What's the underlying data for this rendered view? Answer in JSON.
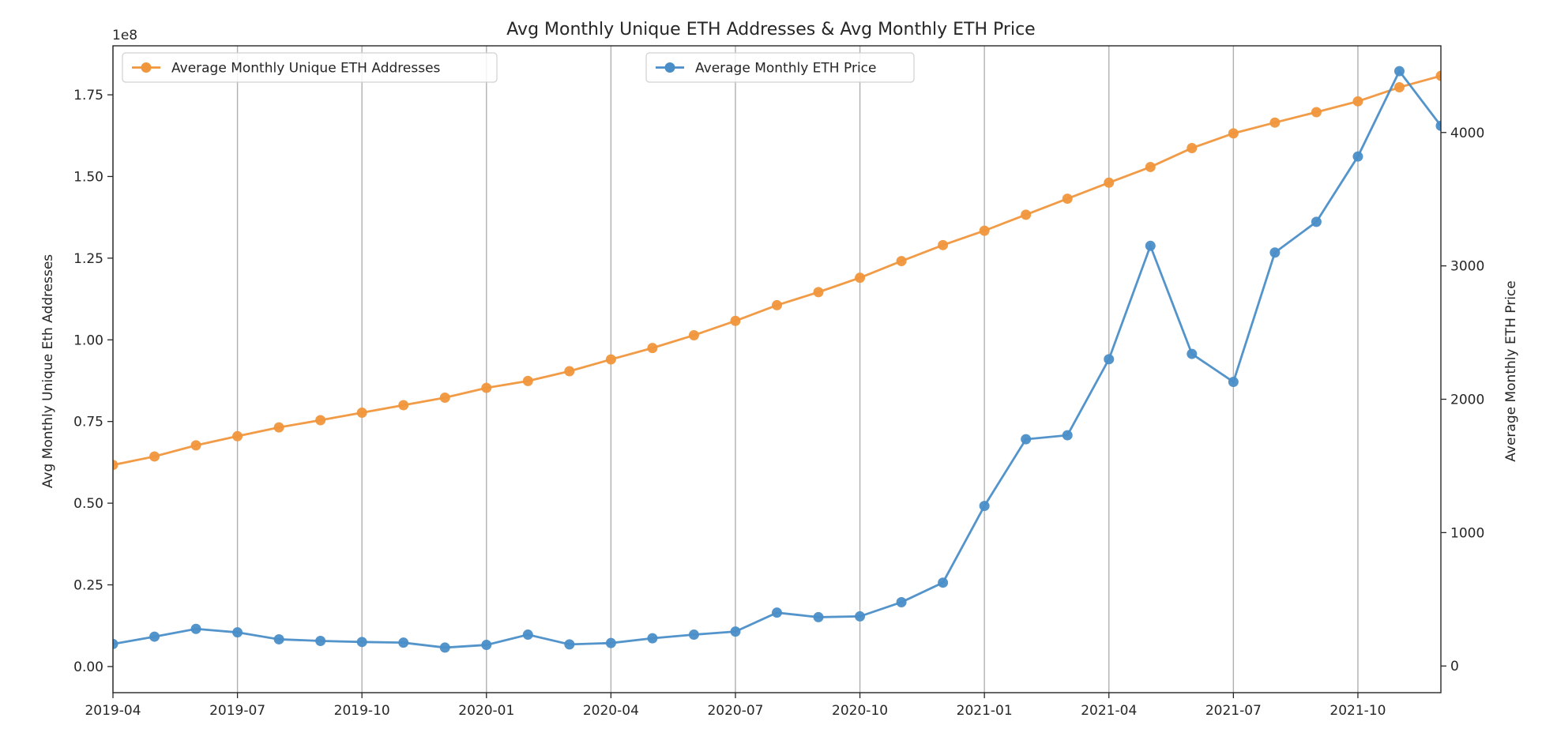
{
  "chart_data": {
    "type": "line",
    "title": "Avg Monthly Unique ETH Addresses & Avg Monthly ETH Price",
    "xlabel": "",
    "x": [
      "2019-04",
      "2019-05",
      "2019-06",
      "2019-07",
      "2019-08",
      "2019-09",
      "2019-10",
      "2019-11",
      "2019-12",
      "2020-01",
      "2020-02",
      "2020-03",
      "2020-04",
      "2020-05",
      "2020-06",
      "2020-07",
      "2020-08",
      "2020-09",
      "2020-10",
      "2020-11",
      "2020-12",
      "2021-01",
      "2021-02",
      "2021-03",
      "2021-04",
      "2021-05",
      "2021-06",
      "2021-07",
      "2021-08",
      "2021-09",
      "2021-10",
      "2021-11",
      "2021-12"
    ],
    "xlim": [
      "2019-04",
      "2021-12"
    ],
    "x_ticks": [
      "2019-04",
      "2019-07",
      "2019-10",
      "2020-01",
      "2020-04",
      "2020-07",
      "2020-10",
      "2021-01",
      "2021-04",
      "2021-07",
      "2021-10"
    ],
    "grid": "vertical",
    "y_left": {
      "label": "Avg Monthly Unique Eth Addresses",
      "exponent_label": "1e8",
      "ylim": [
        -0.08,
        1.9
      ],
      "ticks": [
        "0.00",
        "0.25",
        "0.50",
        "0.75",
        "1.00",
        "1.25",
        "1.50",
        "1.75"
      ]
    },
    "y_right": {
      "label": "Average Monthly ETH Price",
      "ylim": [
        -200,
        4650
      ],
      "ticks": [
        "0",
        "1000",
        "2000",
        "3000",
        "4000"
      ]
    },
    "series": [
      {
        "name": "Average Monthly Unique ETH Addresses",
        "axis": "left",
        "color": "#f0963c",
        "values": [
          0.617,
          0.643,
          0.677,
          0.705,
          0.732,
          0.754,
          0.777,
          0.8,
          0.823,
          0.853,
          0.874,
          0.904,
          0.94,
          0.975,
          1.014,
          1.058,
          1.106,
          1.146,
          1.19,
          1.241,
          1.29,
          1.334,
          1.383,
          1.432,
          1.481,
          1.529,
          1.587,
          1.632,
          1.665,
          1.697,
          1.73,
          1.773,
          1.808
        ]
      },
      {
        "name": "Average Monthly ETH Price",
        "axis": "right",
        "color": "#4a8ec8",
        "values": [
          165,
          220,
          278,
          252,
          200,
          188,
          180,
          175,
          138,
          158,
          235,
          162,
          172,
          208,
          235,
          258,
          400,
          366,
          372,
          478,
          625,
          1200,
          1700,
          1730,
          2300,
          3150,
          2340,
          2130,
          3100,
          3330,
          3820,
          4460,
          4050
        ]
      }
    ],
    "legends": [
      {
        "series": 0,
        "placement": "upper-left"
      },
      {
        "series": 1,
        "placement": "upper-center"
      }
    ]
  }
}
